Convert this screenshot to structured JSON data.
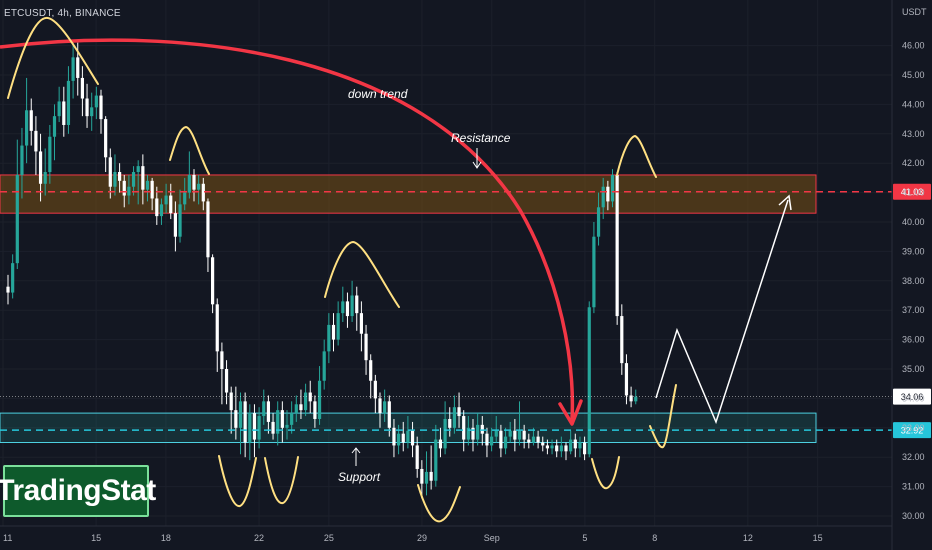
{
  "symbol": "ETCUSDT, 4h, BINANCE",
  "logo": "TradingStat",
  "chart_data": {
    "type": "candlestick",
    "y_unit": "USDT",
    "y_range": [
      29.6,
      47.0
    ],
    "y_ticks": [
      "46.00",
      "45.00",
      "44.00",
      "43.00",
      "42.00",
      "41.00",
      "40.00",
      "39.00",
      "38.00",
      "37.00",
      "36.00",
      "35.00",
      "34.00",
      "33.00",
      "32.00",
      "31.00",
      "30.00"
    ],
    "x_ticks": [
      {
        "label": "11",
        "x": 0
      },
      {
        "label": "15",
        "x": 24
      },
      {
        "label": "18",
        "x": 42
      },
      {
        "label": "22",
        "x": 66
      },
      {
        "label": "25",
        "x": 84
      },
      {
        "label": "29",
        "x": 108
      },
      {
        "label": "Sep",
        "x": 126
      },
      {
        "label": "5",
        "x": 150
      },
      {
        "label": "8",
        "x": 168
      },
      {
        "label": "12",
        "x": 192
      },
      {
        "label": "15",
        "x": 210
      }
    ],
    "x_range": [
      0,
      232
    ],
    "price_labels": [
      {
        "text": "41.03",
        "value": 41.03,
        "color": "#f23645"
      },
      {
        "text": "34.06",
        "value": 34.06,
        "color": "#ffffff"
      },
      {
        "text": "32.92",
        "value": 32.92,
        "color": "#26c6da"
      }
    ],
    "resistance_zone": {
      "label": "Resistance",
      "low": 40.3,
      "high": 41.6
    },
    "support_zone": {
      "label": "Support",
      "low": 32.5,
      "high": 33.5
    },
    "annotations": {
      "down_trend": "down trend",
      "resistance": "Resistance",
      "support": "Support"
    },
    "colors": {
      "up": "#26a69a",
      "down": "#ffffff",
      "up_bright": "#4caf50",
      "background": "#131722",
      "resistance": "#f23645",
      "support": "#26c6da",
      "trend": "#f23645",
      "peaks": "#ffe082"
    },
    "candles": [
      [
        37.8,
        37.6,
        38.2,
        37.2
      ],
      [
        37.6,
        38.6,
        38.9,
        37.4
      ],
      [
        38.6,
        41.6,
        42.8,
        38.4
      ],
      [
        41.6,
        42.6,
        43.2,
        40.8
      ],
      [
        42.6,
        43.8,
        44.9,
        42.0
      ],
      [
        43.8,
        43.1,
        44.2,
        42.6
      ],
      [
        43.1,
        42.4,
        43.6,
        41.6
      ],
      [
        42.4,
        41.3,
        43.0,
        40.7
      ],
      [
        41.3,
        41.7,
        42.5,
        40.9
      ],
      [
        41.7,
        42.9,
        43.3,
        41.3
      ],
      [
        42.9,
        43.6,
        44.0,
        42.1
      ],
      [
        43.6,
        44.1,
        44.6,
        43.4
      ],
      [
        44.1,
        43.3,
        44.6,
        42.9
      ],
      [
        43.3,
        44.8,
        45.3,
        43.0
      ],
      [
        44.8,
        45.6,
        46.1,
        44.2
      ],
      [
        45.6,
        44.9,
        46.1,
        44.3
      ],
      [
        44.9,
        44.2,
        45.3,
        43.6
      ],
      [
        44.2,
        43.6,
        44.7,
        43.2
      ],
      [
        43.6,
        43.9,
        44.4,
        43.1
      ],
      [
        43.9,
        44.3,
        44.6,
        43.5
      ],
      [
        44.3,
        43.5,
        44.5,
        43.0
      ],
      [
        43.5,
        42.2,
        43.6,
        41.7
      ],
      [
        42.2,
        41.2,
        42.5,
        40.8
      ],
      [
        41.2,
        41.7,
        42.3,
        40.9
      ],
      [
        41.7,
        41.4,
        42.0,
        41.0
      ],
      [
        41.4,
        40.9,
        41.6,
        40.5
      ],
      [
        40.9,
        41.2,
        41.6,
        40.6
      ],
      [
        41.2,
        41.7,
        41.9,
        40.9
      ],
      [
        41.7,
        41.9,
        42.1,
        40.6
      ],
      [
        41.9,
        41.1,
        42.3,
        40.6
      ],
      [
        41.1,
        41.4,
        41.6,
        40.7
      ],
      [
        41.4,
        40.8,
        41.5,
        40.4
      ],
      [
        40.8,
        40.2,
        41.2,
        39.9
      ],
      [
        40.2,
        40.6,
        40.8,
        39.9
      ],
      [
        40.6,
        40.9,
        41.3,
        40.3
      ],
      [
        40.9,
        40.3,
        41.3,
        40.1
      ],
      [
        40.3,
        39.5,
        40.7,
        39.0
      ],
      [
        39.5,
        40.6,
        41.1,
        39.3
      ],
      [
        40.6,
        41.0,
        41.5,
        40.4
      ],
      [
        41.0,
        41.6,
        42.4,
        40.8
      ],
      [
        41.6,
        41.1,
        41.8,
        40.7
      ],
      [
        41.1,
        41.3,
        41.6,
        40.6
      ],
      [
        41.3,
        40.7,
        41.5,
        40.4
      ],
      [
        40.7,
        38.8,
        40.8,
        38.3
      ],
      [
        38.8,
        37.2,
        38.9,
        36.9
      ],
      [
        37.2,
        35.6,
        37.4,
        34.9
      ],
      [
        35.6,
        35.0,
        35.9,
        33.8
      ],
      [
        35.0,
        34.2,
        35.3,
        33.8
      ],
      [
        34.2,
        33.6,
        34.4,
        32.8
      ],
      [
        33.6,
        33.0,
        34.4,
        32.6
      ],
      [
        33.0,
        33.9,
        34.2,
        32.1
      ],
      [
        33.9,
        32.5,
        34.2,
        32.0
      ],
      [
        32.5,
        33.5,
        33.8,
        31.9
      ],
      [
        33.5,
        32.6,
        33.8,
        32.0
      ],
      [
        32.6,
        33.4,
        33.7,
        32.3
      ],
      [
        33.4,
        33.9,
        34.3,
        33.1
      ],
      [
        33.9,
        33.2,
        34.1,
        32.8
      ],
      [
        33.2,
        32.8,
        33.5,
        32.6
      ],
      [
        32.8,
        33.6,
        33.9,
        32.4
      ],
      [
        33.6,
        33.0,
        33.9,
        32.5
      ],
      [
        33.0,
        33.1,
        33.6,
        32.6
      ],
      [
        33.1,
        33.5,
        33.9,
        32.8
      ],
      [
        33.5,
        33.8,
        34.1,
        33.2
      ],
      [
        33.8,
        33.6,
        34.3,
        33.3
      ],
      [
        33.6,
        34.2,
        34.5,
        33.4
      ],
      [
        34.2,
        33.9,
        34.6,
        33.5
      ],
      [
        33.9,
        33.3,
        34.1,
        33.0
      ],
      [
        33.3,
        34.6,
        35.1,
        33.1
      ],
      [
        34.6,
        35.6,
        36.0,
        34.3
      ],
      [
        35.6,
        36.5,
        36.9,
        35.2
      ],
      [
        36.5,
        36.0,
        36.9,
        35.6
      ],
      [
        36.0,
        36.9,
        37.3,
        35.8
      ],
      [
        36.9,
        37.3,
        37.8,
        36.6
      ],
      [
        37.3,
        36.8,
        37.6,
        36.4
      ],
      [
        36.8,
        37.5,
        38.0,
        36.6
      ],
      [
        37.5,
        36.9,
        37.8,
        36.3
      ],
      [
        36.9,
        36.2,
        37.3,
        35.6
      ],
      [
        36.2,
        35.3,
        36.5,
        34.8
      ],
      [
        35.3,
        34.6,
        35.5,
        34.0
      ],
      [
        34.6,
        34.0,
        34.8,
        33.5
      ],
      [
        34.0,
        33.5,
        34.2,
        33.0
      ],
      [
        33.5,
        33.9,
        34.3,
        33.2
      ],
      [
        33.9,
        33.0,
        34.1,
        32.7
      ],
      [
        33.0,
        32.4,
        33.3,
        32.0
      ],
      [
        32.4,
        32.8,
        33.1,
        32.1
      ],
      [
        32.8,
        32.5,
        33.2,
        32.2
      ],
      [
        32.5,
        32.9,
        33.4,
        32.3
      ],
      [
        32.9,
        32.4,
        33.2,
        32.0
      ],
      [
        32.4,
        31.6,
        32.7,
        31.3
      ],
      [
        31.6,
        31.1,
        31.9,
        30.6
      ],
      [
        31.1,
        31.5,
        32.2,
        30.7
      ],
      [
        31.5,
        31.2,
        32.4,
        30.9
      ],
      [
        31.2,
        32.6,
        33.1,
        31.0
      ],
      [
        32.6,
        32.3,
        33.0,
        32.0
      ],
      [
        32.3,
        33.3,
        33.9,
        32.1
      ],
      [
        33.3,
        33.0,
        33.7,
        32.7
      ],
      [
        33.0,
        33.7,
        34.1,
        32.8
      ],
      [
        33.7,
        33.4,
        34.2,
        33.0
      ],
      [
        33.4,
        32.6,
        33.6,
        32.2
      ],
      [
        32.6,
        33.0,
        33.4,
        32.4
      ],
      [
        33.0,
        32.6,
        33.3,
        32.2
      ],
      [
        32.6,
        33.1,
        33.5,
        32.4
      ],
      [
        33.1,
        32.8,
        33.4,
        32.4
      ],
      [
        32.8,
        32.4,
        33.0,
        32.0
      ],
      [
        32.4,
        32.7,
        33.0,
        32.2
      ],
      [
        32.7,
        32.9,
        33.4,
        32.5
      ],
      [
        32.9,
        32.3,
        33.1,
        32.0
      ],
      [
        32.3,
        32.7,
        33.0,
        32.1
      ],
      [
        32.7,
        32.9,
        33.2,
        32.5
      ],
      [
        32.9,
        32.6,
        33.3,
        32.2
      ],
      [
        32.6,
        32.9,
        33.9,
        32.4
      ],
      [
        32.9,
        32.6,
        33.1,
        32.3
      ],
      [
        32.6,
        32.5,
        32.8,
        32.3
      ],
      [
        32.5,
        32.7,
        33.0,
        32.4
      ],
      [
        32.7,
        32.5,
        32.9,
        32.3
      ],
      [
        32.5,
        32.4,
        32.7,
        32.2
      ],
      [
        32.4,
        32.3,
        32.6,
        32.1
      ],
      [
        32.3,
        32.4,
        32.6,
        32.1
      ],
      [
        32.4,
        32.2,
        32.6,
        32.0
      ],
      [
        32.2,
        32.4,
        32.7,
        32.0
      ],
      [
        32.4,
        32.2,
        32.5,
        31.9
      ],
      [
        32.2,
        32.6,
        32.9,
        32.1
      ],
      [
        32.6,
        32.3,
        32.8,
        32.0
      ],
      [
        32.3,
        32.5,
        32.7,
        32.0
      ],
      [
        32.5,
        32.1,
        32.7,
        31.9
      ],
      [
        32.1,
        37.1,
        37.3,
        32.0
      ],
      [
        37.1,
        39.5,
        40.0,
        36.9
      ],
      [
        39.5,
        40.5,
        41.0,
        39.2
      ],
      [
        40.5,
        41.2,
        41.5,
        40.1
      ],
      [
        41.2,
        40.7,
        41.4,
        40.4
      ],
      [
        40.7,
        41.6,
        41.8,
        40.5
      ],
      [
        41.6,
        36.8,
        41.7,
        36.5
      ],
      [
        36.8,
        35.2,
        37.2,
        34.8
      ],
      [
        35.2,
        34.1,
        35.5,
        33.8
      ],
      [
        34.1,
        33.9,
        34.4,
        33.7
      ],
      [
        33.9,
        34.06,
        34.3,
        33.8
      ]
    ]
  }
}
